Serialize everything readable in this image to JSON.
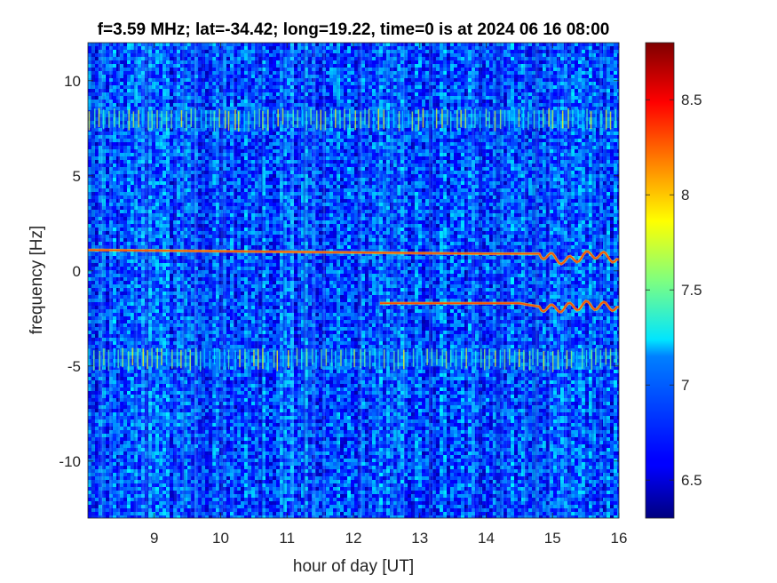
{
  "chart_data": {
    "type": "heatmap",
    "title": "f=3.59 MHz;  lat=-34.42; long=19.22, time=0 is at 2024 06 16 08:00",
    "xlabel": "hour of day [UT]",
    "ylabel": "frequency [Hz]",
    "xlim": [
      8,
      16
    ],
    "ylim": [
      -13,
      12
    ],
    "x_ticks": [
      9,
      10,
      11,
      12,
      13,
      14,
      15,
      16
    ],
    "x_tick_labels": [
      "9",
      "10",
      "11",
      "12",
      "13",
      "14",
      "15",
      "16"
    ],
    "y_ticks": [
      10,
      5,
      0,
      -5,
      -10
    ],
    "y_tick_labels": [
      "10",
      "5",
      "0",
      "-5",
      "-10"
    ],
    "colorbar": {
      "colormap": "jet",
      "clim": [
        6.3,
        8.8
      ],
      "ticks": [
        8.5,
        8,
        7.5,
        7,
        6.5
      ],
      "tick_labels": [
        "8.5",
        "8",
        "7.5",
        "7",
        "6.5"
      ]
    },
    "background_level": 6.8,
    "features": [
      {
        "kind": "horizontal band",
        "frequency": 8,
        "level": 7.5
      },
      {
        "kind": "horizontal band",
        "frequency": -4.6,
        "level": 7.5
      },
      {
        "kind": "doppler trace",
        "points": [
          [
            8,
            1.1
          ],
          [
            11,
            1.0
          ],
          [
            14,
            0.9
          ],
          [
            14.8,
            0.9
          ],
          [
            15.2,
            0.5
          ],
          [
            15.6,
            0.9
          ],
          [
            16,
            0.6
          ]
        ],
        "level": 8.3
      },
      {
        "kind": "doppler trace",
        "points": [
          [
            12.4,
            -1.7
          ],
          [
            14.5,
            -1.7
          ],
          [
            15,
            -2.0
          ],
          [
            15.5,
            -1.8
          ],
          [
            16,
            -1.9
          ]
        ],
        "level": 8.3
      }
    ],
    "grid": false
  }
}
